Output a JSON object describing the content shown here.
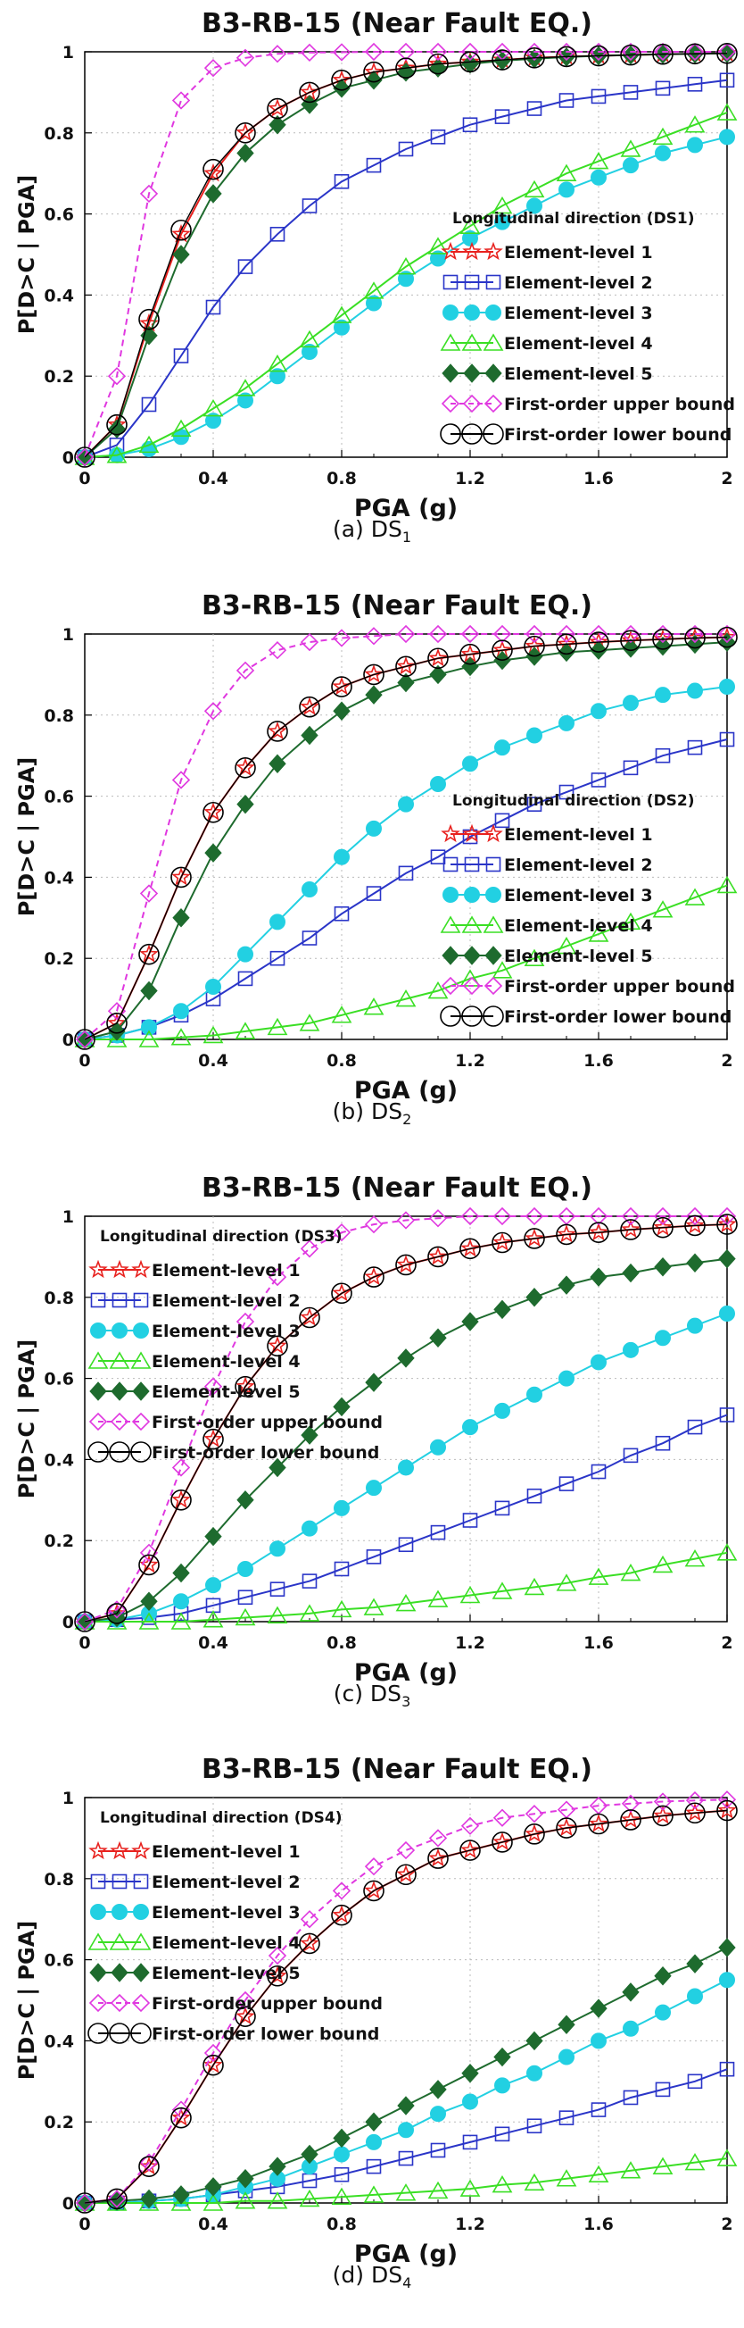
{
  "chart_data": [
    {
      "type": "line",
      "title": "B3-RB-15 (Near Fault EQ.)",
      "xlabel": "PGA (g)",
      "ylabel": "P[D>C | PGA]",
      "xlim": [
        0,
        2
      ],
      "ylim": [
        0,
        1
      ],
      "xticks": [
        "0",
        "0.4",
        "0.8",
        "1.2",
        "1.6",
        "2"
      ],
      "yticks": [
        "0",
        "0.2",
        "0.4",
        "0.6",
        "0.8",
        "1"
      ],
      "legend_title": "Longitudinal direction (DS1)",
      "legend_position": "lower-right",
      "caption": {
        "prefix": "(a) DS",
        "sub": "1"
      },
      "x": [
        0,
        0.1,
        0.2,
        0.3,
        0.4,
        0.5,
        0.6,
        0.7,
        0.8,
        0.9,
        1.0,
        1.1,
        1.2,
        1.3,
        1.4,
        1.5,
        1.6,
        1.7,
        1.8,
        1.9,
        2.0
      ],
      "series": [
        {
          "name": "Element-level 1",
          "values": [
            0,
            0.08,
            0.33,
            0.55,
            0.7,
            0.8,
            0.86,
            0.9,
            0.93,
            0.95,
            0.96,
            0.97,
            0.975,
            0.98,
            0.985,
            0.988,
            0.99,
            0.992,
            0.994,
            0.995,
            0.996
          ]
        },
        {
          "name": "Element-level 2",
          "values": [
            0,
            0.03,
            0.13,
            0.25,
            0.37,
            0.47,
            0.55,
            0.62,
            0.68,
            0.72,
            0.76,
            0.79,
            0.82,
            0.84,
            0.86,
            0.88,
            0.89,
            0.9,
            0.91,
            0.92,
            0.93
          ]
        },
        {
          "name": "Element-level 3",
          "values": [
            0,
            0.005,
            0.02,
            0.05,
            0.09,
            0.14,
            0.2,
            0.26,
            0.32,
            0.38,
            0.44,
            0.49,
            0.54,
            0.58,
            0.62,
            0.66,
            0.69,
            0.72,
            0.75,
            0.77,
            0.79
          ]
        },
        {
          "name": "Element-level 4",
          "values": [
            0,
            0.005,
            0.03,
            0.07,
            0.12,
            0.17,
            0.23,
            0.29,
            0.35,
            0.41,
            0.47,
            0.52,
            0.57,
            0.62,
            0.66,
            0.7,
            0.73,
            0.76,
            0.79,
            0.82,
            0.85
          ]
        },
        {
          "name": "Element-level 5",
          "values": [
            0,
            0.07,
            0.3,
            0.5,
            0.65,
            0.75,
            0.82,
            0.87,
            0.91,
            0.93,
            0.95,
            0.96,
            0.97,
            0.978,
            0.983,
            0.987,
            0.99,
            0.992,
            0.994,
            0.995,
            0.996
          ]
        },
        {
          "name": "First-order upper bound",
          "values": [
            0,
            0.2,
            0.65,
            0.88,
            0.96,
            0.985,
            0.995,
            0.998,
            0.999,
            1,
            1,
            1,
            1,
            1,
            1,
            1,
            1,
            1,
            1,
            1,
            1
          ]
        },
        {
          "name": "First-order lower bound",
          "values": [
            0,
            0.08,
            0.34,
            0.56,
            0.71,
            0.8,
            0.86,
            0.9,
            0.93,
            0.95,
            0.96,
            0.97,
            0.975,
            0.98,
            0.985,
            0.988,
            0.99,
            0.992,
            0.994,
            0.995,
            0.996
          ]
        }
      ]
    },
    {
      "type": "line",
      "title": "B3-RB-15 (Near Fault EQ.)",
      "xlabel": "PGA (g)",
      "ylabel": "P[D>C | PGA]",
      "xlim": [
        0,
        2
      ],
      "ylim": [
        0,
        1
      ],
      "xticks": [
        "0",
        "0.4",
        "0.8",
        "1.2",
        "1.6",
        "2"
      ],
      "yticks": [
        "0",
        "0.2",
        "0.4",
        "0.6",
        "0.8",
        "1"
      ],
      "legend_title": "Longitudinal direction (DS2)",
      "legend_position": "lower-right",
      "caption": {
        "prefix": "(b) DS",
        "sub": "2"
      },
      "x": [
        0,
        0.1,
        0.2,
        0.3,
        0.4,
        0.5,
        0.6,
        0.7,
        0.8,
        0.9,
        1.0,
        1.1,
        1.2,
        1.3,
        1.4,
        1.5,
        1.6,
        1.7,
        1.8,
        1.9,
        2.0
      ],
      "series": [
        {
          "name": "Element-level 1",
          "values": [
            0,
            0.04,
            0.21,
            0.4,
            0.56,
            0.67,
            0.76,
            0.82,
            0.87,
            0.9,
            0.92,
            0.94,
            0.95,
            0.96,
            0.97,
            0.975,
            0.98,
            0.984,
            0.987,
            0.99,
            0.992
          ]
        },
        {
          "name": "Element-level 2",
          "values": [
            0,
            0.01,
            0.03,
            0.06,
            0.1,
            0.15,
            0.2,
            0.25,
            0.31,
            0.36,
            0.41,
            0.45,
            0.5,
            0.54,
            0.58,
            0.61,
            0.64,
            0.67,
            0.7,
            0.72,
            0.74
          ]
        },
        {
          "name": "Element-level 3",
          "values": [
            0,
            0.01,
            0.03,
            0.07,
            0.13,
            0.21,
            0.29,
            0.37,
            0.45,
            0.52,
            0.58,
            0.63,
            0.68,
            0.72,
            0.75,
            0.78,
            0.81,
            0.83,
            0.85,
            0.86,
            0.87
          ]
        },
        {
          "name": "Element-level 4",
          "values": [
            0,
            0.0,
            0.0,
            0.005,
            0.01,
            0.02,
            0.03,
            0.04,
            0.06,
            0.08,
            0.1,
            0.12,
            0.15,
            0.17,
            0.2,
            0.23,
            0.26,
            0.29,
            0.32,
            0.35,
            0.38
          ]
        },
        {
          "name": "Element-level 5",
          "values": [
            0,
            0.02,
            0.12,
            0.3,
            0.46,
            0.58,
            0.68,
            0.75,
            0.81,
            0.85,
            0.88,
            0.9,
            0.92,
            0.935,
            0.945,
            0.955,
            0.96,
            0.965,
            0.97,
            0.975,
            0.98
          ]
        },
        {
          "name": "First-order upper bound",
          "values": [
            0,
            0.07,
            0.36,
            0.64,
            0.81,
            0.91,
            0.96,
            0.98,
            0.99,
            0.995,
            1,
            1,
            1,
            1,
            1,
            1,
            1,
            1,
            1,
            1,
            1
          ]
        },
        {
          "name": "First-order lower bound",
          "values": [
            0,
            0.04,
            0.21,
            0.4,
            0.56,
            0.67,
            0.76,
            0.82,
            0.87,
            0.9,
            0.92,
            0.94,
            0.95,
            0.96,
            0.97,
            0.975,
            0.98,
            0.984,
            0.987,
            0.99,
            0.992
          ]
        }
      ]
    },
    {
      "type": "line",
      "title": "B3-RB-15 (Near Fault EQ.)",
      "xlabel": "PGA (g)",
      "ylabel": "P[D>C | PGA]",
      "xlim": [
        0,
        2
      ],
      "ylim": [
        0,
        1
      ],
      "xticks": [
        "0",
        "0.4",
        "0.8",
        "1.2",
        "1.6",
        "2"
      ],
      "yticks": [
        "0",
        "0.2",
        "0.4",
        "0.6",
        "0.8",
        "1"
      ],
      "legend_title": "Longitudinal direction (DS3)",
      "legend_position": "upper-left",
      "caption": {
        "prefix": "(c) DS",
        "sub": "3"
      },
      "x": [
        0,
        0.1,
        0.2,
        0.3,
        0.4,
        0.5,
        0.6,
        0.7,
        0.8,
        0.9,
        1.0,
        1.1,
        1.2,
        1.3,
        1.4,
        1.5,
        1.6,
        1.7,
        1.8,
        1.9,
        2.0
      ],
      "series": [
        {
          "name": "Element-level 1",
          "values": [
            0,
            0.02,
            0.14,
            0.3,
            0.45,
            0.58,
            0.68,
            0.75,
            0.81,
            0.85,
            0.88,
            0.9,
            0.92,
            0.935,
            0.945,
            0.955,
            0.96,
            0.967,
            0.972,
            0.977,
            0.98
          ]
        },
        {
          "name": "Element-level 2",
          "values": [
            0,
            0.005,
            0.01,
            0.02,
            0.04,
            0.06,
            0.08,
            0.1,
            0.13,
            0.16,
            0.19,
            0.22,
            0.25,
            0.28,
            0.31,
            0.34,
            0.37,
            0.41,
            0.44,
            0.48,
            0.51
          ]
        },
        {
          "name": "Element-level 3",
          "values": [
            0,
            0.005,
            0.02,
            0.05,
            0.09,
            0.13,
            0.18,
            0.23,
            0.28,
            0.33,
            0.38,
            0.43,
            0.48,
            0.52,
            0.56,
            0.6,
            0.64,
            0.67,
            0.7,
            0.73,
            0.76
          ]
        },
        {
          "name": "Element-level 4",
          "values": [
            0,
            0.0,
            0.0,
            0.0,
            0.005,
            0.01,
            0.015,
            0.02,
            0.03,
            0.035,
            0.045,
            0.055,
            0.065,
            0.075,
            0.085,
            0.095,
            0.11,
            0.12,
            0.14,
            0.155,
            0.17
          ]
        },
        {
          "name": "Element-level 5",
          "values": [
            0,
            0.01,
            0.05,
            0.12,
            0.21,
            0.3,
            0.38,
            0.46,
            0.53,
            0.59,
            0.65,
            0.7,
            0.74,
            0.77,
            0.8,
            0.83,
            0.85,
            0.86,
            0.875,
            0.885,
            0.895
          ]
        },
        {
          "name": "First-order upper bound",
          "values": [
            0,
            0.03,
            0.17,
            0.38,
            0.58,
            0.74,
            0.85,
            0.92,
            0.96,
            0.98,
            0.99,
            0.995,
            1,
            1,
            1,
            1,
            1,
            1,
            1,
            1,
            1
          ]
        },
        {
          "name": "First-order lower bound",
          "values": [
            0,
            0.02,
            0.14,
            0.3,
            0.45,
            0.58,
            0.68,
            0.75,
            0.81,
            0.85,
            0.88,
            0.9,
            0.92,
            0.935,
            0.945,
            0.955,
            0.96,
            0.967,
            0.972,
            0.977,
            0.98
          ]
        }
      ]
    },
    {
      "type": "line",
      "title": "B3-RB-15 (Near Fault EQ.)",
      "xlabel": "PGA (g)",
      "ylabel": "P[D>C | PGA]",
      "xlim": [
        0,
        2
      ],
      "ylim": [
        0,
        1
      ],
      "xticks": [
        "0",
        "0.4",
        "0.8",
        "1.2",
        "1.6",
        "2"
      ],
      "yticks": [
        "0",
        "0.2",
        "0.4",
        "0.6",
        "0.8",
        "1"
      ],
      "legend_title": "Longitudinal direction (DS4)",
      "legend_position": "upper-left",
      "caption": {
        "prefix": "(d) DS",
        "sub": "4"
      },
      "x": [
        0,
        0.1,
        0.2,
        0.3,
        0.4,
        0.5,
        0.6,
        0.7,
        0.8,
        0.9,
        1.0,
        1.1,
        1.2,
        1.3,
        1.4,
        1.5,
        1.6,
        1.7,
        1.8,
        1.9,
        2.0
      ],
      "series": [
        {
          "name": "Element-level 1",
          "values": [
            0,
            0.01,
            0.09,
            0.21,
            0.34,
            0.46,
            0.56,
            0.64,
            0.71,
            0.77,
            0.81,
            0.85,
            0.87,
            0.89,
            0.91,
            0.925,
            0.935,
            0.945,
            0.955,
            0.962,
            0.968
          ]
        },
        {
          "name": "Element-level 2",
          "values": [
            0,
            0.0,
            0.005,
            0.01,
            0.02,
            0.03,
            0.04,
            0.055,
            0.07,
            0.09,
            0.11,
            0.13,
            0.15,
            0.17,
            0.19,
            0.21,
            0.23,
            0.26,
            0.28,
            0.3,
            0.33
          ]
        },
        {
          "name": "Element-level 3",
          "values": [
            0,
            0.0,
            0.005,
            0.01,
            0.02,
            0.04,
            0.06,
            0.09,
            0.12,
            0.15,
            0.18,
            0.22,
            0.25,
            0.29,
            0.32,
            0.36,
            0.4,
            0.43,
            0.47,
            0.51,
            0.55
          ]
        },
        {
          "name": "Element-level 4",
          "values": [
            0,
            0.0,
            0.0,
            0.0,
            0.0,
            0.005,
            0.005,
            0.01,
            0.015,
            0.02,
            0.025,
            0.03,
            0.035,
            0.045,
            0.05,
            0.06,
            0.07,
            0.08,
            0.09,
            0.1,
            0.11
          ]
        },
        {
          "name": "Element-level 5",
          "values": [
            0,
            0.005,
            0.01,
            0.02,
            0.04,
            0.06,
            0.09,
            0.12,
            0.16,
            0.2,
            0.24,
            0.28,
            0.32,
            0.36,
            0.4,
            0.44,
            0.48,
            0.52,
            0.56,
            0.59,
            0.63
          ]
        },
        {
          "name": "First-order upper bound",
          "values": [
            0,
            0.01,
            0.1,
            0.23,
            0.37,
            0.5,
            0.61,
            0.7,
            0.77,
            0.83,
            0.87,
            0.9,
            0.93,
            0.95,
            0.96,
            0.97,
            0.98,
            0.985,
            0.99,
            0.993,
            0.995
          ]
        },
        {
          "name": "First-order lower bound",
          "values": [
            0,
            0.01,
            0.09,
            0.21,
            0.34,
            0.46,
            0.56,
            0.64,
            0.71,
            0.77,
            0.81,
            0.85,
            0.87,
            0.89,
            0.91,
            0.925,
            0.935,
            0.945,
            0.955,
            0.962,
            0.968
          ]
        }
      ]
    }
  ],
  "series_styles": [
    {
      "color": "#e8221f",
      "marker": "star",
      "dashed": false
    },
    {
      "color": "#2a35c8",
      "marker": "square-open",
      "dashed": false
    },
    {
      "color": "#22d0e2",
      "marker": "circle-filled",
      "dashed": false
    },
    {
      "color": "#3adf24",
      "marker": "triangle-open",
      "dashed": false
    },
    {
      "color": "#1e6b2e",
      "marker": "diamond-filled",
      "dashed": false
    },
    {
      "color": "#e038e0",
      "marker": "diamond-open",
      "dashed": true
    },
    {
      "color": "#000000",
      "marker": "circle-open",
      "dashed": false
    }
  ]
}
